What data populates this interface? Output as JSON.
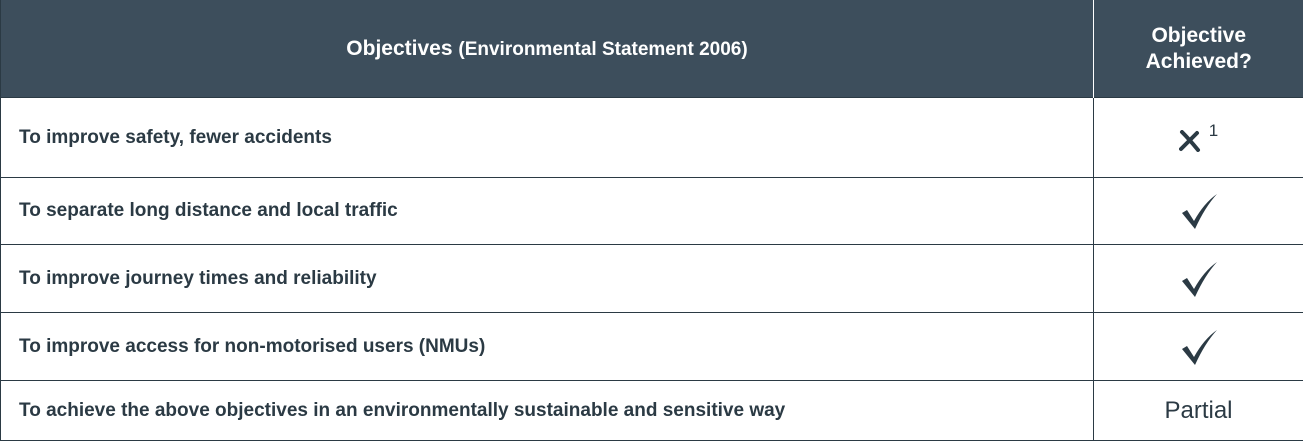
{
  "table": {
    "header": {
      "title": "Objectives",
      "subtitle": "(Environmental Statement 2006)",
      "achieved": "Objective Achieved?"
    },
    "rows": [
      {
        "objective": "To improve safety, fewer accidents",
        "note": "1"
      },
      {
        "objective": "To separate long distance and local traffic"
      },
      {
        "objective": "To improve journey times and reliability"
      },
      {
        "objective": "To improve access for non-motorised users (NMUs)"
      },
      {
        "objective": "To achieve the above objectives in an environmentally sustainable and sensitive way",
        "achieved": "Partial"
      }
    ]
  }
}
